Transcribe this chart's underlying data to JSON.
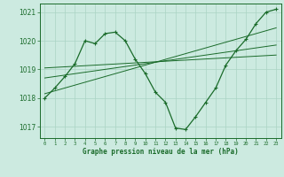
{
  "title": "Graphe pression niveau de la mer (hPa)",
  "background_color": "#cceae0",
  "grid_color": "#aad4c4",
  "line_color": "#1a6b2a",
  "xlim": [
    -0.5,
    23.5
  ],
  "ylim": [
    1016.6,
    1021.3
  ],
  "yticks": [
    1017,
    1018,
    1019,
    1020,
    1021
  ],
  "xticks": [
    0,
    1,
    2,
    3,
    4,
    5,
    6,
    7,
    8,
    9,
    10,
    11,
    12,
    13,
    14,
    15,
    16,
    17,
    18,
    19,
    20,
    21,
    22,
    23
  ],
  "main_series_x": [
    0,
    1,
    2,
    3,
    4,
    5,
    6,
    7,
    8,
    9,
    10,
    11,
    12,
    13,
    14,
    15,
    16,
    17,
    18,
    19,
    20,
    21,
    22,
    23
  ],
  "main_series_y": [
    1018.0,
    1018.35,
    1018.75,
    1019.2,
    1020.0,
    1019.9,
    1020.25,
    1020.3,
    1020.0,
    1019.35,
    1018.85,
    1018.2,
    1017.85,
    1016.95,
    1016.9,
    1017.35,
    1017.85,
    1018.35,
    1019.15,
    1019.65,
    1020.05,
    1020.6,
    1021.0,
    1021.1
  ],
  "trend_lines": [
    {
      "x": [
        0,
        23
      ],
      "y": [
        1018.15,
        1020.45
      ]
    },
    {
      "x": [
        0,
        23
      ],
      "y": [
        1018.7,
        1019.85
      ]
    },
    {
      "x": [
        0,
        23
      ],
      "y": [
        1019.05,
        1019.5
      ]
    }
  ]
}
